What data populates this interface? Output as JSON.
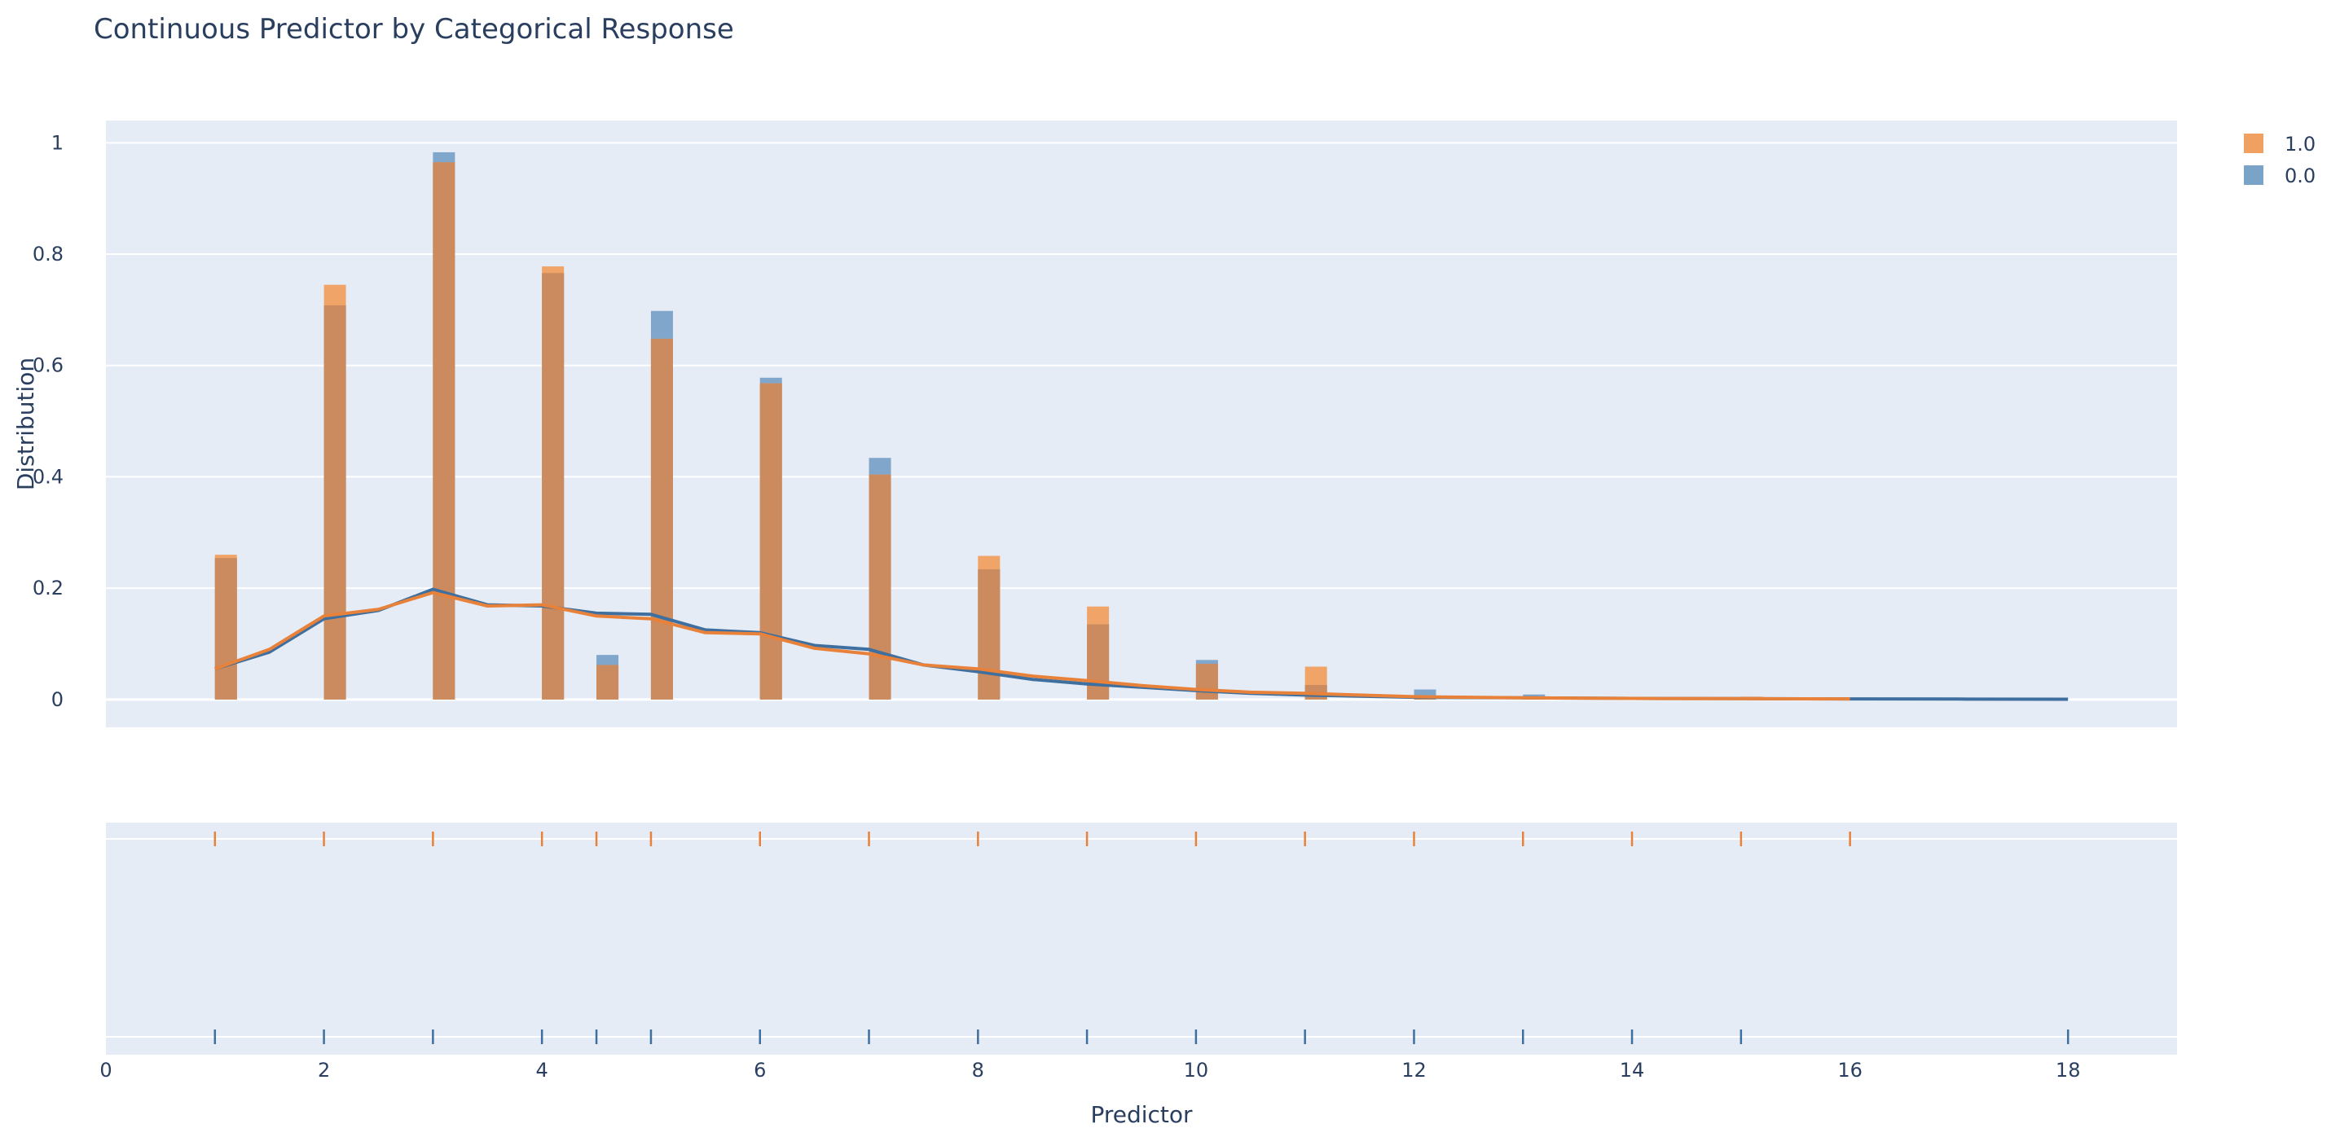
{
  "chart_data": {
    "type": "histogram",
    "title": "Continuous Predictor by Categorical Response",
    "xlabel": "Predictor",
    "ylabel": "Distribution",
    "xlim": [
      0,
      19
    ],
    "ylim": [
      -0.05,
      1.04
    ],
    "x_ticks": [
      0,
      2,
      4,
      6,
      8,
      10,
      12,
      14,
      16,
      18
    ],
    "y_ticks": [
      0,
      0.2,
      0.4,
      0.6,
      0.8,
      1
    ],
    "y_tick_labels": [
      "0",
      "0.2",
      "0.4",
      "0.6",
      "0.8",
      "1"
    ],
    "grid": true,
    "legend_position": "top-right",
    "series": [
      {
        "name": "1.0",
        "color": "#f0a060",
        "line_color": "#e8823a",
        "bars": [
          {
            "x": 1,
            "value": 0.26
          },
          {
            "x": 2,
            "value": 0.745
          },
          {
            "x": 3,
            "value": 0.965
          },
          {
            "x": 4,
            "value": 0.778
          },
          {
            "x": 4.5,
            "value": 0.062
          },
          {
            "x": 5,
            "value": 0.648
          },
          {
            "x": 6,
            "value": 0.568
          },
          {
            "x": 7,
            "value": 0.404
          },
          {
            "x": 8,
            "value": 0.258
          },
          {
            "x": 9,
            "value": 0.167
          },
          {
            "x": 10,
            "value": 0.064
          },
          {
            "x": 11,
            "value": 0.059
          },
          {
            "x": 12,
            "value": 0.006
          },
          {
            "x": 13,
            "value": 0.003
          },
          {
            "x": 15,
            "value": 0.005
          }
        ],
        "kde": [
          [
            1,
            0.055
          ],
          [
            1.5,
            0.09
          ],
          [
            2,
            0.15
          ],
          [
            2.5,
            0.162
          ],
          [
            3,
            0.192
          ],
          [
            3.5,
            0.168
          ],
          [
            4,
            0.17
          ],
          [
            4.5,
            0.15
          ],
          [
            5,
            0.145
          ],
          [
            5.5,
            0.12
          ],
          [
            6,
            0.118
          ],
          [
            6.5,
            0.092
          ],
          [
            7,
            0.082
          ],
          [
            7.5,
            0.062
          ],
          [
            8,
            0.055
          ],
          [
            8.5,
            0.042
          ],
          [
            9,
            0.034
          ],
          [
            9.5,
            0.025
          ],
          [
            10,
            0.018
          ],
          [
            10.5,
            0.013
          ],
          [
            11,
            0.011
          ],
          [
            11.5,
            0.008
          ],
          [
            12,
            0.005
          ],
          [
            13,
            0.003
          ],
          [
            14,
            0.002
          ],
          [
            15,
            0.0015
          ],
          [
            16,
            0.001
          ]
        ],
        "rug": [
          1,
          2,
          3,
          4,
          4.5,
          5,
          6,
          7,
          8,
          9,
          10,
          11,
          12,
          13,
          14,
          15,
          16
        ]
      },
      {
        "name": "0.0",
        "color": "#7aa3c8",
        "line_color": "#3e6f9e",
        "bars": [
          {
            "x": 1,
            "value": 0.254
          },
          {
            "x": 2,
            "value": 0.708
          },
          {
            "x": 3,
            "value": 0.983
          },
          {
            "x": 4,
            "value": 0.766
          },
          {
            "x": 4.5,
            "value": 0.08
          },
          {
            "x": 5,
            "value": 0.698
          },
          {
            "x": 6,
            "value": 0.578
          },
          {
            "x": 7,
            "value": 0.434
          },
          {
            "x": 8,
            "value": 0.234
          },
          {
            "x": 9,
            "value": 0.135
          },
          {
            "x": 10,
            "value": 0.071
          },
          {
            "x": 11,
            "value": 0.026
          },
          {
            "x": 12,
            "value": 0.018
          },
          {
            "x": 13,
            "value": 0.009
          },
          {
            "x": 15,
            "value": 0.002
          }
        ],
        "kde": [
          [
            1,
            0.055
          ],
          [
            1.5,
            0.085
          ],
          [
            2,
            0.145
          ],
          [
            2.5,
            0.16
          ],
          [
            3,
            0.198
          ],
          [
            3.5,
            0.17
          ],
          [
            4,
            0.168
          ],
          [
            4.5,
            0.155
          ],
          [
            5,
            0.153
          ],
          [
            5.5,
            0.125
          ],
          [
            6,
            0.12
          ],
          [
            6.5,
            0.097
          ],
          [
            7,
            0.09
          ],
          [
            7.5,
            0.062
          ],
          [
            8,
            0.05
          ],
          [
            8.5,
            0.036
          ],
          [
            9,
            0.028
          ],
          [
            9.5,
            0.022
          ],
          [
            10,
            0.016
          ],
          [
            10.5,
            0.011
          ],
          [
            11,
            0.008
          ],
          [
            11.5,
            0.006
          ],
          [
            12,
            0.004
          ],
          [
            13,
            0.003
          ],
          [
            14,
            0.002
          ],
          [
            15,
            0.0015
          ],
          [
            16,
            0.001
          ],
          [
            17,
            0.0008
          ],
          [
            18,
            0.0005
          ]
        ],
        "rug": [
          1,
          2,
          3,
          4,
          4.5,
          5,
          6,
          7,
          8,
          9,
          10,
          11,
          12,
          13,
          14,
          15,
          18
        ]
      }
    ]
  }
}
